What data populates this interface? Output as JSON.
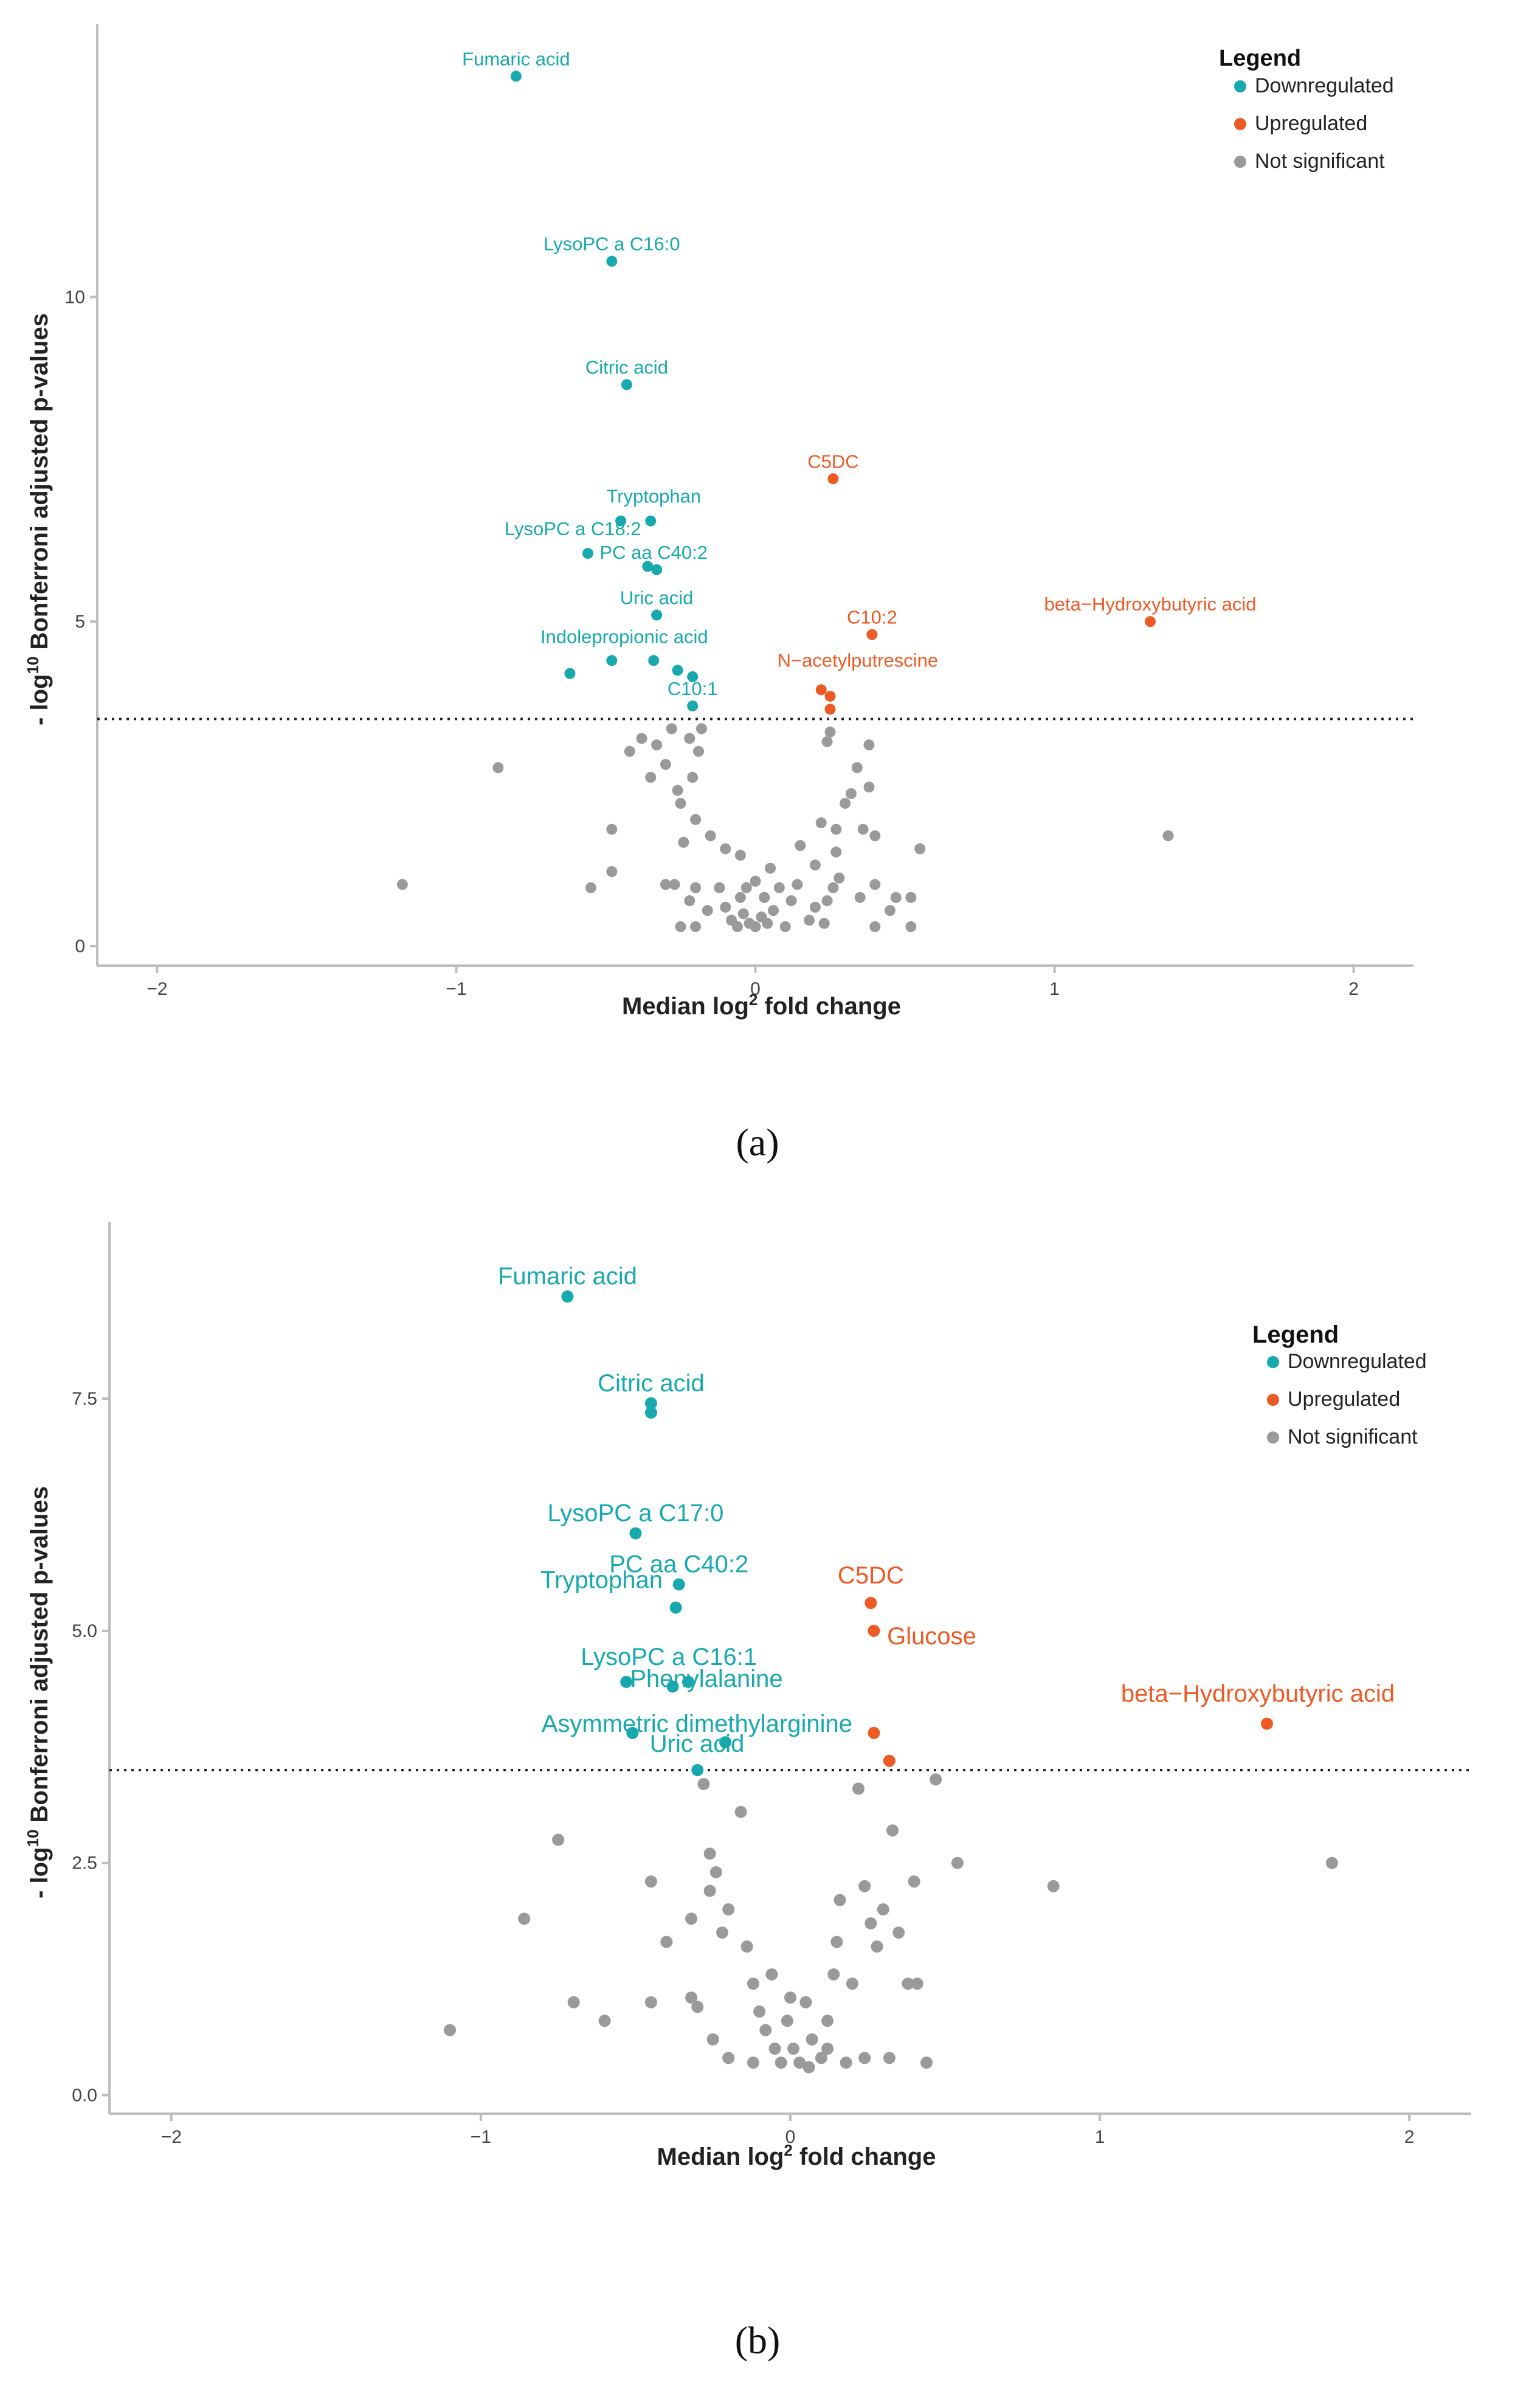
{
  "colors": {
    "down": "#18a9ae",
    "up": "#ee5a24",
    "ns": "#9a9a9a"
  },
  "chart_data": [
    {
      "type": "scatter",
      "caption": "(a)",
      "xlabel_prefix": "Median log",
      "xlabel_sup": "2",
      "xlabel_suffix": " fold change",
      "ylabel_prefix": "- log",
      "ylabel_sup": "10",
      "ylabel_suffix": " Bonferroni adjusted p-values",
      "xlim": [
        -2.2,
        2.2
      ],
      "ylim": [
        -0.3,
        14.2
      ],
      "xticks": [
        -2,
        -1,
        0,
        1,
        2
      ],
      "xtick_labels": [
        "−2",
        "−1",
        "0",
        "1",
        "2"
      ],
      "yticks": [
        0,
        5,
        10
      ],
      "ytick_labels": [
        "0",
        "5",
        "10"
      ],
      "threshold": 3.5,
      "legend": {
        "title": "Legend",
        "items": [
          {
            "label": "Downregulated",
            "key": "down"
          },
          {
            "label": "Upregulated",
            "key": "up"
          },
          {
            "label": "Not significant",
            "key": "ns"
          }
        ]
      },
      "series": [
        {
          "name": "Downregulated",
          "key": "down",
          "points": [
            [
              -0.8,
              13.4
            ],
            [
              -0.48,
              10.55
            ],
            [
              -0.43,
              8.65
            ],
            [
              -0.45,
              6.55
            ],
            [
              -0.35,
              6.55
            ],
            [
              -0.56,
              6.05
            ],
            [
              -0.36,
              5.85
            ],
            [
              -0.33,
              5.8
            ],
            [
              -0.33,
              5.1
            ],
            [
              -0.62,
              4.2
            ],
            [
              -0.48,
              4.4
            ],
            [
              -0.34,
              4.4
            ],
            [
              -0.26,
              4.25
            ],
            [
              -0.21,
              4.15
            ],
            [
              -0.21,
              3.7
            ]
          ]
        },
        {
          "name": "Upregulated",
          "key": "up",
          "points": [
            [
              0.26,
              7.2
            ],
            [
              0.39,
              4.8
            ],
            [
              1.32,
              5.0
            ],
            [
              0.22,
              3.95
            ],
            [
              0.25,
              3.85
            ],
            [
              0.25,
              3.65
            ]
          ]
        },
        {
          "name": "Not significant",
          "key": "ns",
          "points": [
            [
              -1.18,
              0.95
            ],
            [
              -0.86,
              2.75
            ],
            [
              -0.55,
              0.9
            ],
            [
              -0.48,
              1.15
            ],
            [
              -0.48,
              1.8
            ],
            [
              -0.42,
              3.0
            ],
            [
              -0.38,
              3.2
            ],
            [
              -0.35,
              2.6
            ],
            [
              -0.33,
              3.1
            ],
            [
              -0.3,
              2.8
            ],
            [
              -0.28,
              3.35
            ],
            [
              -0.26,
              2.4
            ],
            [
              -0.25,
              2.2
            ],
            [
              -0.22,
              3.2
            ],
            [
              -0.21,
              2.6
            ],
            [
              -0.19,
              3.0
            ],
            [
              -0.18,
              3.35
            ],
            [
              -0.2,
              1.95
            ],
            [
              -0.24,
              1.6
            ],
            [
              -0.27,
              0.95
            ],
            [
              -0.2,
              0.9
            ],
            [
              -0.2,
              0.3
            ],
            [
              -0.16,
              0.55
            ],
            [
              -0.15,
              1.7
            ],
            [
              -0.1,
              1.5
            ],
            [
              -0.12,
              0.9
            ],
            [
              -0.1,
              0.6
            ],
            [
              -0.08,
              0.4
            ],
            [
              -0.06,
              0.3
            ],
            [
              -0.05,
              0.75
            ],
            [
              -0.04,
              0.5
            ],
            [
              -0.03,
              0.9
            ],
            [
              -0.02,
              0.35
            ],
            [
              0.0,
              0.3
            ],
            [
              0.02,
              0.45
            ],
            [
              0.03,
              0.75
            ],
            [
              0.04,
              0.35
            ],
            [
              0.06,
              0.55
            ],
            [
              0.08,
              0.9
            ],
            [
              0.1,
              0.3
            ],
            [
              0.12,
              0.7
            ],
            [
              0.14,
              0.95
            ],
            [
              0.15,
              1.55
            ],
            [
              0.18,
              0.4
            ],
            [
              0.2,
              1.25
            ],
            [
              0.22,
              1.9
            ],
            [
              0.23,
              0.35
            ],
            [
              0.24,
              0.7
            ],
            [
              0.27,
              1.45
            ],
            [
              0.27,
              1.8
            ],
            [
              0.28,
              1.05
            ],
            [
              0.3,
              2.2
            ],
            [
              0.32,
              2.35
            ],
            [
              0.34,
              2.75
            ],
            [
              0.36,
              1.8
            ],
            [
              0.38,
              2.45
            ],
            [
              0.4,
              1.7
            ],
            [
              0.4,
              0.95
            ],
            [
              0.45,
              0.55
            ],
            [
              0.47,
              0.75
            ],
            [
              0.52,
              0.75
            ],
            [
              0.52,
              0.3
            ],
            [
              0.55,
              1.5
            ],
            [
              0.35,
              0.75
            ],
            [
              0.4,
              0.3
            ],
            [
              0.25,
              3.3
            ],
            [
              0.24,
              3.15
            ],
            [
              0.38,
              3.1
            ],
            [
              -0.25,
              0.3
            ],
            [
              -0.22,
              0.7
            ],
            [
              -0.3,
              0.95
            ],
            [
              0.05,
              1.2
            ],
            [
              0.0,
              1.0
            ],
            [
              -0.05,
              1.4
            ],
            [
              0.2,
              0.6
            ],
            [
              0.26,
              0.9
            ],
            [
              1.38,
              1.7
            ]
          ]
        }
      ],
      "annotations": [
        {
          "text": "Fumaric acid",
          "x": -0.8,
          "y": 13.4,
          "key": "down"
        },
        {
          "text": "LysoPC a C16:0",
          "x": -0.48,
          "y": 10.55,
          "key": "down"
        },
        {
          "text": "Citric acid",
          "x": -0.43,
          "y": 8.65,
          "key": "down"
        },
        {
          "text": "Tryptophan",
          "x": -0.35,
          "y": 6.55,
          "key": "down"
        },
        {
          "text": "LysoPC a C18:2",
          "x": -0.6,
          "y": 6.05,
          "key": "down"
        },
        {
          "text": "PC aa C40:2",
          "x": -0.34,
          "y": 5.8,
          "key": "down"
        },
        {
          "text": "Uric acid",
          "x": -0.33,
          "y": 5.1,
          "key": "down"
        },
        {
          "text": "Indolepropionic acid",
          "x": -0.54,
          "y": 4.2,
          "key": "down"
        },
        {
          "text": "C10:1",
          "x": -0.21,
          "y": 3.7,
          "key": "down"
        },
        {
          "text": "C5DC",
          "x": 0.26,
          "y": 7.2,
          "key": "up"
        },
        {
          "text": "C10:2",
          "x": 0.39,
          "y": 4.8,
          "key": "up"
        },
        {
          "text": "beta−Hydroxybutyric acid",
          "x": 1.32,
          "y": 5.0,
          "key": "up"
        },
        {
          "text": "N−acetylputrescine",
          "x": 0.2,
          "y": 3.95,
          "key": "up"
        }
      ]
    },
    {
      "type": "scatter",
      "caption": "(b)",
      "xlabel_prefix": "Median log",
      "xlabel_sup": "2",
      "xlabel_suffix": " fold change",
      "ylabel_prefix": "- log",
      "ylabel_sup": "10",
      "ylabel_suffix": " Bonferroni adjusted p-values",
      "xlim": [
        -2.2,
        2.2
      ],
      "ylim": [
        -0.2,
        9.4
      ],
      "xticks": [
        -2,
        -1,
        0,
        1,
        2
      ],
      "xtick_labels": [
        "−2",
        "−1",
        "0",
        "1",
        "2"
      ],
      "yticks": [
        0,
        2.5,
        5,
        7.5
      ],
      "ytick_labels": [
        "0.0",
        "2.5",
        "5.0",
        "7.5"
      ],
      "threshold": 3.5,
      "legend": {
        "title": "Legend",
        "items": [
          {
            "label": "Downregulated",
            "key": "down"
          },
          {
            "label": "Upregulated",
            "key": "up"
          },
          {
            "label": "Not significant",
            "key": "ns"
          }
        ]
      },
      "series": [
        {
          "name": "Downregulated",
          "key": "down",
          "points": [
            [
              -0.72,
              8.6
            ],
            [
              -0.45,
              7.45
            ],
            [
              -0.45,
              7.35
            ],
            [
              -0.5,
              6.05
            ],
            [
              -0.36,
              5.5
            ],
            [
              -0.37,
              5.25
            ],
            [
              -0.53,
              4.45
            ],
            [
              -0.38,
              4.4
            ],
            [
              -0.33,
              4.45
            ],
            [
              -0.51,
              3.9
            ],
            [
              -0.21,
              3.8
            ],
            [
              -0.3,
              3.5
            ]
          ]
        },
        {
          "name": "Upregulated",
          "key": "up",
          "points": [
            [
              0.26,
              5.3
            ],
            [
              0.27,
              5.0
            ],
            [
              0.27,
              3.9
            ],
            [
              0.32,
              3.6
            ],
            [
              1.54,
              4.0
            ]
          ]
        },
        {
          "name": "Not significant",
          "key": "ns",
          "points": [
            [
              -1.1,
              0.7
            ],
            [
              -0.86,
              1.9
            ],
            [
              -0.75,
              2.75
            ],
            [
              -0.7,
              1.0
            ],
            [
              -0.6,
              0.8
            ],
            [
              -0.45,
              2.3
            ],
            [
              -0.45,
              1.0
            ],
            [
              -0.4,
              1.65
            ],
            [
              -0.32,
              1.9
            ],
            [
              -0.32,
              1.05
            ],
            [
              -0.28,
              3.35
            ],
            [
              -0.26,
              2.6
            ],
            [
              -0.26,
              2.2
            ],
            [
              -0.24,
              2.4
            ],
            [
              -0.22,
              1.75
            ],
            [
              -0.2,
              2.0
            ],
            [
              -0.16,
              3.05
            ],
            [
              -0.14,
              1.6
            ],
            [
              -0.12,
              1.2
            ],
            [
              -0.1,
              0.9
            ],
            [
              -0.08,
              0.7
            ],
            [
              -0.06,
              1.3
            ],
            [
              -0.05,
              0.5
            ],
            [
              -0.03,
              0.35
            ],
            [
              -0.01,
              0.8
            ],
            [
              0.01,
              0.5
            ],
            [
              0.03,
              0.35
            ],
            [
              0.05,
              1.0
            ],
            [
              0.07,
              0.6
            ],
            [
              0.1,
              0.4
            ],
            [
              0.12,
              0.8
            ],
            [
              0.14,
              1.3
            ],
            [
              0.15,
              1.65
            ],
            [
              0.16,
              2.1
            ],
            [
              0.18,
              0.35
            ],
            [
              0.2,
              1.2
            ],
            [
              0.22,
              3.3
            ],
            [
              0.24,
              2.25
            ],
            [
              0.26,
              1.85
            ],
            [
              0.28,
              1.6
            ],
            [
              0.3,
              2.0
            ],
            [
              0.33,
              2.85
            ],
            [
              0.35,
              1.75
            ],
            [
              0.38,
              1.2
            ],
            [
              0.4,
              2.3
            ],
            [
              0.41,
              1.2
            ],
            [
              0.44,
              0.35
            ],
            [
              0.47,
              3.4
            ],
            [
              0.54,
              2.5
            ],
            [
              0.85,
              2.25
            ],
            [
              1.75,
              2.5
            ],
            [
              -0.2,
              0.4
            ],
            [
              -0.25,
              0.6
            ],
            [
              -0.3,
              0.95
            ],
            [
              0.0,
              1.05
            ],
            [
              0.06,
              0.3
            ],
            [
              0.12,
              0.5
            ],
            [
              0.24,
              0.4
            ],
            [
              0.32,
              0.4
            ],
            [
              -0.12,
              0.35
            ]
          ]
        }
      ],
      "annotations": [
        {
          "text": "Fumaric acid",
          "x": -0.72,
          "y": 8.6,
          "key": "down"
        },
        {
          "text": "Citric acid",
          "x": -0.45,
          "y": 7.45,
          "key": "down"
        },
        {
          "text": "LysoPC a C17:0",
          "x": -0.5,
          "y": 6.05,
          "key": "down"
        },
        {
          "text": "PC aa C40:2",
          "x": -0.36,
          "y": 5.5,
          "key": "down"
        },
        {
          "text": "Tryptophan",
          "x": -0.6,
          "y": 5.25,
          "key": "down"
        },
        {
          "text": "LysoPC a C16:1",
          "x": -0.53,
          "y": 4.45,
          "key": "down"
        },
        {
          "text": "Phenylalanine",
          "x": -0.33,
          "y": 4.45,
          "key": "down"
        },
        {
          "text": "Asymmetric dimethylarginine",
          "x": -0.4,
          "y": 3.9,
          "key": "down"
        },
        {
          "text": "Uric acid",
          "x": -0.38,
          "y": 3.8,
          "key": "down"
        },
        {
          "text": "C5DC",
          "x": 0.26,
          "y": 5.3,
          "key": "up"
        },
        {
          "text": "Glucose",
          "x": 0.27,
          "y": 5.0,
          "key": "up"
        },
        {
          "text": "beta−Hydroxybutyric acid",
          "x": 1.54,
          "y": 4.0,
          "key": "up"
        }
      ]
    }
  ]
}
